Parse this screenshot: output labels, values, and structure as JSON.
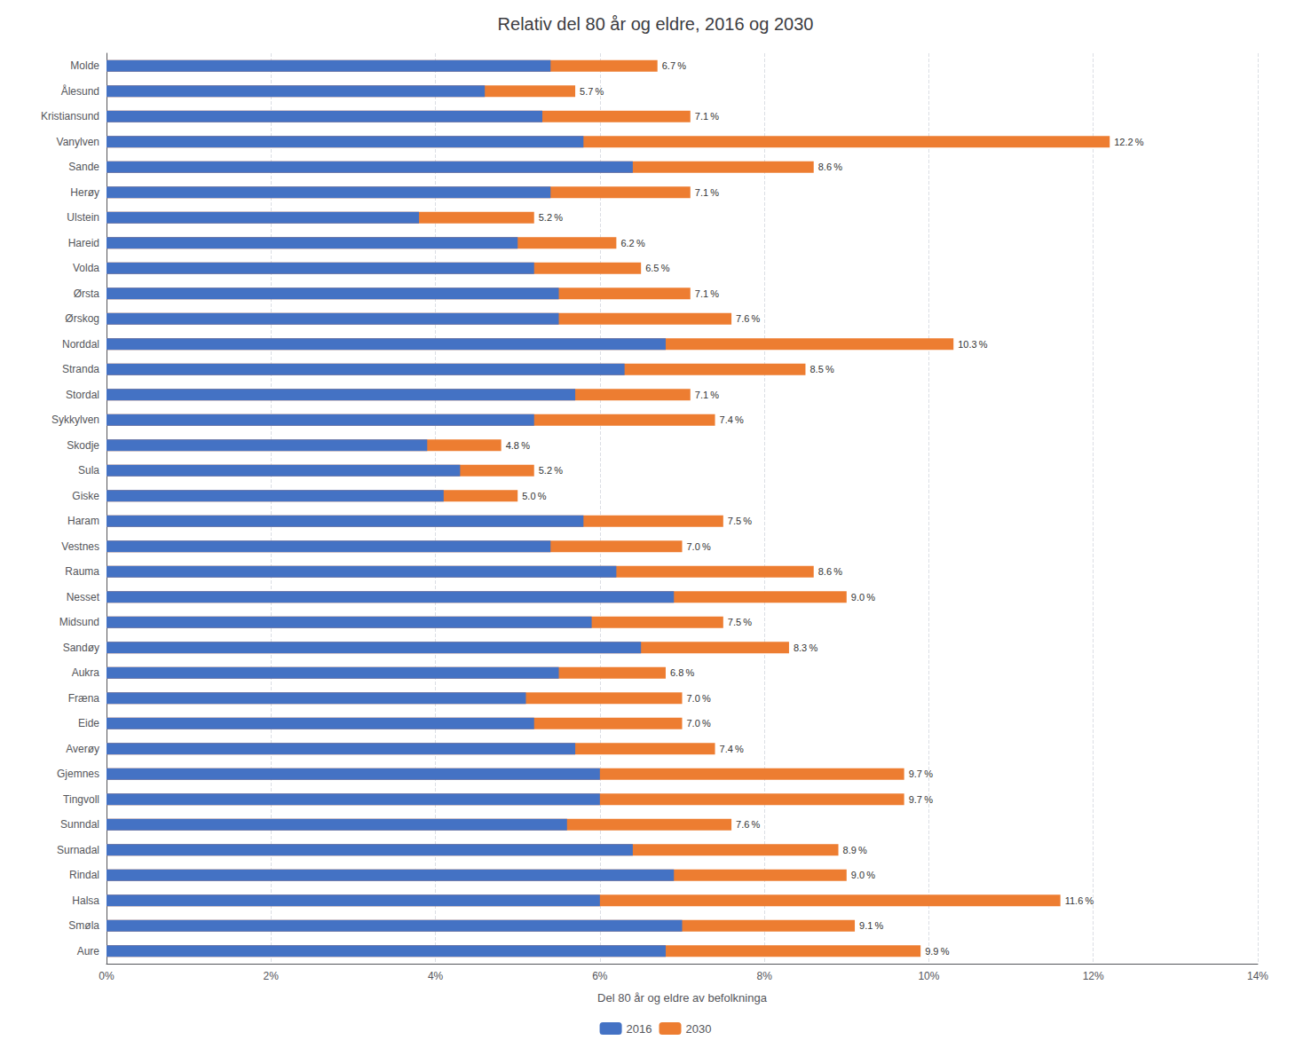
{
  "chart_data": {
    "type": "bar",
    "orientation": "horizontal",
    "title": "Relativ del 80 år og eldre, 2016 og 2030",
    "xlabel": "Del 80 år og eldre av befolkninga",
    "categories": [
      "Molde",
      "Ålesund",
      "Kristiansund",
      "Vanylven",
      "Sande",
      "Herøy",
      "Ulstein",
      "Hareid",
      "Volda",
      "Ørsta",
      "Ørskog",
      "Norddal",
      "Stranda",
      "Stordal",
      "Sykkylven",
      "Skodje",
      "Sula",
      "Giske",
      "Haram",
      "Vestnes",
      "Rauma",
      "Nesset",
      "Midsund",
      "Sandøy",
      "Aukra",
      "Fræna",
      "Eide",
      "Averøy",
      "Gjemnes",
      "Tingvoll",
      "Sunndal",
      "Surnadal",
      "Rindal",
      "Halsa",
      "Smøla",
      "Aure"
    ],
    "series": [
      {
        "name": "2016",
        "color": "#4472C4",
        "values": [
          5.4,
          4.6,
          5.3,
          5.8,
          6.4,
          5.4,
          3.8,
          5.0,
          5.2,
          5.5,
          5.5,
          6.8,
          6.3,
          5.7,
          5.2,
          3.9,
          4.3,
          4.1,
          5.8,
          5.4,
          6.2,
          6.9,
          5.9,
          6.5,
          5.5,
          5.1,
          5.2,
          5.7,
          6.0,
          6.0,
          5.6,
          6.4,
          6.9,
          6.0,
          7.0,
          6.8
        ]
      },
      {
        "name": "2030",
        "color": "#ED7D31",
        "data_labels": true,
        "values": [
          6.7,
          5.7,
          7.1,
          12.2,
          8.6,
          7.1,
          5.2,
          6.2,
          6.5,
          7.1,
          7.6,
          10.3,
          8.5,
          7.1,
          7.4,
          4.8,
          5.2,
          5.0,
          7.5,
          7.0,
          8.6,
          9.0,
          7.5,
          8.3,
          6.8,
          7.0,
          7.0,
          7.4,
          9.7,
          9.7,
          7.6,
          8.9,
          9.0,
          11.6,
          9.1,
          9.9
        ],
        "value_labels": [
          "6.7 %",
          "5.7 %",
          "7.1 %",
          "12.2 %",
          "8.6 %",
          "7.1 %",
          "5.2 %",
          "6.2 %",
          "6.5 %",
          "7.1 %",
          "7.6 %",
          "10.3 %",
          "8.5 %",
          "7.1 %",
          "7.4 %",
          "4.8 %",
          "5.2 %",
          "5.0 %",
          "7.5 %",
          "7.0 %",
          "8.6 %",
          "9.0 %",
          "7.5 %",
          "8.3 %",
          "6.8 %",
          "7.0 %",
          "7.0 %",
          "7.4 %",
          "9.7 %",
          "9.7 %",
          "7.6 %",
          "8.9 %",
          "9.0 %",
          "11.6 %",
          "9.1 %",
          "9.9 %"
        ]
      }
    ],
    "xlim": [
      0,
      14
    ],
    "xticks": [
      {
        "value": 0,
        "label": "0%"
      },
      {
        "value": 2,
        "label": "2%"
      },
      {
        "value": 4,
        "label": "4%"
      },
      {
        "value": 6,
        "label": "6%"
      },
      {
        "value": 8,
        "label": "8%"
      },
      {
        "value": 10,
        "label": "10%"
      },
      {
        "value": 12,
        "label": "12%"
      },
      {
        "value": 14,
        "label": "14%"
      }
    ],
    "grid": true,
    "legend": "bottom"
  }
}
